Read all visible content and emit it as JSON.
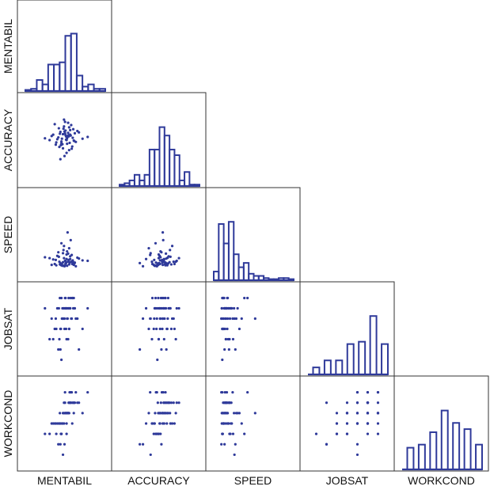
{
  "chart_data": {
    "type": "scatter",
    "title": "",
    "layout": "scatterplot-matrix-lower-triangle",
    "variables": [
      "MENTABIL",
      "ACCURACY",
      "SPEED",
      "JOBSAT",
      "WORKCOND"
    ],
    "domains": {
      "MENTABIL": [
        0,
        14
      ],
      "ACCURACY": [
        0,
        16
      ],
      "SPEED": [
        0,
        16
      ],
      "JOBSAT": [
        0.5,
        7.5
      ],
      "WORKCOND": [
        0.5,
        7.5
      ]
    },
    "discrete": {
      "MENTABIL": false,
      "ACCURACY": false,
      "SPEED": false,
      "JOBSAT": true,
      "WORKCOND": true
    },
    "histograms": {
      "MENTABIL": [
        0.5,
        1,
        5,
        3,
        12,
        12,
        13,
        25,
        26,
        7,
        2,
        3,
        1,
        1
      ],
      "ACCURACY": [
        0.5,
        1,
        2,
        4,
        2,
        4,
        13,
        13,
        21,
        18,
        13,
        11,
        2,
        5,
        0.5,
        0.5
      ],
      "SPEED": [
        4,
        26,
        17,
        27,
        12,
        6,
        8,
        3,
        2,
        2,
        1,
        0.5,
        0.5,
        1,
        1,
        0.5
      ],
      "JOBSAT": [
        3,
        6,
        6,
        13,
        14,
        25,
        13
      ],
      "WORKCOND": [
        7,
        8,
        12,
        19,
        15,
        13,
        8
      ]
    },
    "observations": [
      [
        7.2,
        9.1,
        2.1,
        6,
        5
      ],
      [
        6.5,
        8.3,
        1.5,
        5,
        4
      ],
      [
        8.1,
        10.2,
        3.2,
        6,
        6
      ],
      [
        5.4,
        7.5,
        1.2,
        4,
        3
      ],
      [
        7.8,
        8.8,
        2.4,
        7,
        5
      ],
      [
        9.0,
        9.5,
        1.8,
        6,
        6
      ],
      [
        6.9,
        11.0,
        5.5,
        5,
        4
      ],
      [
        4.1,
        8.0,
        2.8,
        3,
        3
      ],
      [
        7.5,
        7.2,
        1.1,
        6,
        5
      ],
      [
        8.4,
        6.1,
        3.5,
        5,
        7
      ],
      [
        6.2,
        9.8,
        1.6,
        4,
        4
      ],
      [
        7.1,
        12.0,
        2.2,
        6,
        6
      ],
      [
        5.8,
        8.6,
        4.1,
        2,
        2
      ],
      [
        8.8,
        7.9,
        1.3,
        7,
        5
      ],
      [
        7.4,
        5.2,
        2.6,
        6,
        4
      ],
      [
        6.7,
        9.3,
        1.9,
        5,
        5
      ],
      [
        3.2,
        8.4,
        3.0,
        6,
        3
      ],
      [
        7.9,
        10.8,
        1.4,
        4,
        6
      ],
      [
        8.2,
        9.0,
        6.8,
        7,
        7
      ],
      [
        6.0,
        6.5,
        2.0,
        3,
        4
      ],
      [
        7.3,
        8.1,
        1.7,
        6,
        5
      ],
      [
        9.5,
        10.0,
        2.9,
        5,
        6
      ],
      [
        6.4,
        7.7,
        1.2,
        1,
        3
      ],
      [
        7.7,
        9.6,
        3.8,
        6,
        5
      ],
      [
        5.1,
        11.5,
        1.5,
        4,
        4
      ],
      [
        8.6,
        8.5,
        2.3,
        7,
        6
      ],
      [
        7.0,
        4.5,
        1.0,
        5,
        2
      ],
      [
        6.8,
        10.5,
        4.6,
        6,
        5
      ],
      [
        4.8,
        9.2,
        2.5,
        3,
        4
      ],
      [
        8.0,
        7.4,
        1.8,
        6,
        7
      ],
      [
        7.6,
        8.9,
        8.5,
        5,
        5
      ],
      [
        6.3,
        6.9,
        1.3,
        4,
        3
      ],
      [
        9.8,
        9.7,
        2.7,
        2,
        6
      ],
      [
        7.2,
        10.1,
        1.6,
        7,
        5
      ],
      [
        5.6,
        8.2,
        3.3,
        6,
        4
      ],
      [
        8.3,
        11.3,
        2.0,
        5,
        6
      ],
      [
        6.6,
        7.1,
        1.1,
        6,
        4
      ],
      [
        7.9,
        5.8,
        5.0,
        4,
        5
      ],
      [
        11.5,
        8.7,
        2.2,
        6,
        7
      ],
      [
        6.1,
        9.4,
        1.4,
        7,
        5
      ],
      [
        7.4,
        8.0,
        3.6,
        3,
        3
      ],
      [
        8.7,
        10.4,
        1.9,
        6,
        6
      ],
      [
        5.3,
        7.0,
        2.4,
        5,
        4
      ],
      [
        7.0,
        9.9,
        1.2,
        4,
        5
      ],
      [
        6.9,
        12.5,
        2.8,
        6,
        6
      ],
      [
        8.5,
        6.6,
        1.5,
        7,
        4
      ],
      [
        7.5,
        8.4,
        4.3,
        5,
        5
      ],
      [
        6.2,
        3.8,
        1.7,
        2,
        2
      ],
      [
        7.8,
        9.1,
        2.1,
        6,
        6
      ],
      [
        9.2,
        7.6,
        1.0,
        5,
        7
      ],
      [
        5.9,
        10.6,
        3.1,
        6,
        4
      ],
      [
        7.3,
        8.8,
        1.8,
        4,
        5
      ],
      [
        6.4,
        7.3,
        6.1,
        7,
        3
      ],
      [
        8.1,
        9.2,
        2.6,
        6,
        6
      ],
      [
        4.5,
        8.9,
        1.3,
        5,
        4
      ],
      [
        7.7,
        11.8,
        2.0,
        3,
        5
      ],
      [
        8.9,
        7.8,
        1.6,
        6,
        6
      ],
      [
        6.7,
        6.2,
        3.9,
        5,
        1
      ],
      [
        7.1,
        9.5,
        1.2,
        7,
        7
      ],
      [
        10.5,
        8.3,
        2.3,
        4,
        5
      ]
    ],
    "colors": {
      "marks": "#2f3a9a",
      "frame": "#333333",
      "text": "#111111"
    },
    "grid": false,
    "legend": "none"
  }
}
